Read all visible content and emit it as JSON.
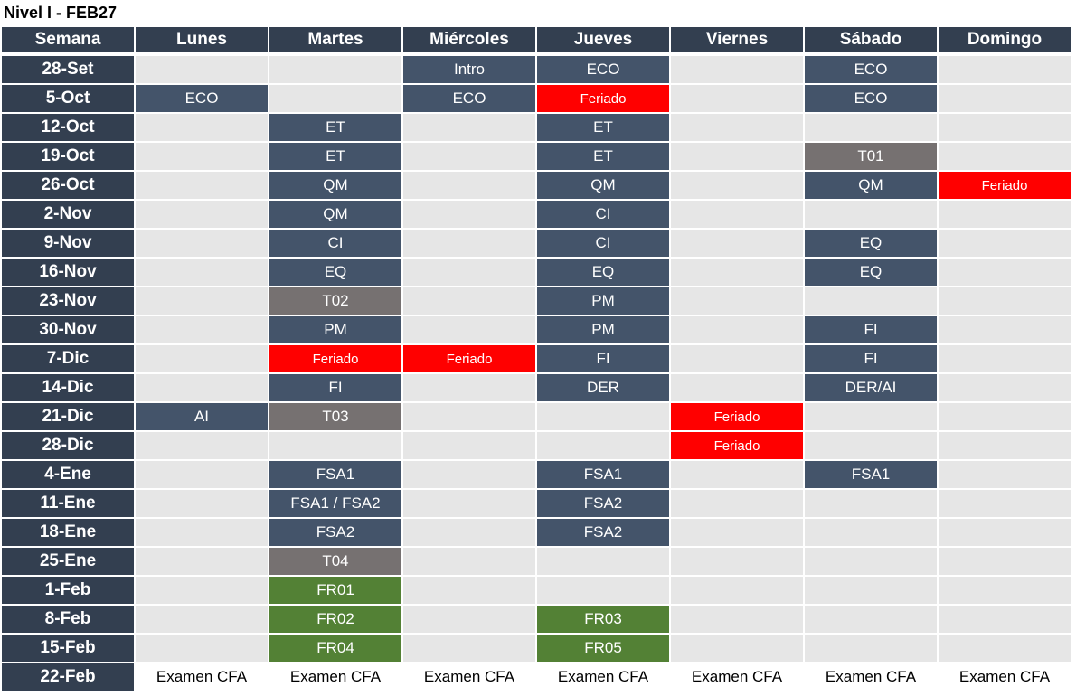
{
  "title": "Nivel I - FEB27",
  "table": {
    "header": [
      "Semana",
      "Lunes",
      "Martes",
      "Miércoles",
      "Jueves",
      "Viernes",
      "Sábado",
      "Domingo"
    ],
    "rows": [
      {
        "week": "28-Set",
        "cells": [
          null,
          null,
          {
            "text": "Intro",
            "color": "#44546a"
          },
          {
            "text": "ECO",
            "color": "#44546a"
          },
          null,
          {
            "text": "ECO",
            "color": "#44546a"
          },
          null
        ]
      },
      {
        "week": "5-Oct",
        "cells": [
          {
            "text": "ECO",
            "color": "#44546a"
          },
          null,
          {
            "text": "ECO",
            "color": "#44546a"
          },
          {
            "text": "Feriado",
            "color": "#ff0000"
          },
          null,
          {
            "text": "ECO",
            "color": "#44546a"
          },
          null
        ]
      },
      {
        "week": "12-Oct",
        "cells": [
          null,
          {
            "text": "ET",
            "color": "#44546a"
          },
          null,
          {
            "text": "ET",
            "color": "#44546a"
          },
          null,
          null,
          null
        ]
      },
      {
        "week": "19-Oct",
        "cells": [
          null,
          {
            "text": "ET",
            "color": "#44546a"
          },
          null,
          {
            "text": "ET",
            "color": "#44546a"
          },
          null,
          {
            "text": "T01",
            "color": "#767171"
          },
          null
        ]
      },
      {
        "week": "26-Oct",
        "cells": [
          null,
          {
            "text": "QM",
            "color": "#44546a"
          },
          null,
          {
            "text": "QM",
            "color": "#44546a"
          },
          null,
          {
            "text": "QM",
            "color": "#44546a"
          },
          {
            "text": "Feriado",
            "color": "#ff0000"
          }
        ]
      },
      {
        "week": "2-Nov",
        "cells": [
          null,
          {
            "text": "QM",
            "color": "#44546a"
          },
          null,
          {
            "text": "CI",
            "color": "#44546a"
          },
          null,
          null,
          null
        ]
      },
      {
        "week": "9-Nov",
        "cells": [
          null,
          {
            "text": "CI",
            "color": "#44546a"
          },
          null,
          {
            "text": "CI",
            "color": "#44546a"
          },
          null,
          {
            "text": "EQ",
            "color": "#44546a"
          },
          null
        ]
      },
      {
        "week": "16-Nov",
        "cells": [
          null,
          {
            "text": "EQ",
            "color": "#44546a"
          },
          null,
          {
            "text": "EQ",
            "color": "#44546a"
          },
          null,
          {
            "text": "EQ",
            "color": "#44546a"
          },
          null
        ]
      },
      {
        "week": "23-Nov",
        "cells": [
          null,
          {
            "text": "T02",
            "color": "#767171"
          },
          null,
          {
            "text": "PM",
            "color": "#44546a"
          },
          null,
          null,
          null
        ]
      },
      {
        "week": "30-Nov",
        "cells": [
          null,
          {
            "text": "PM",
            "color": "#44546a"
          },
          null,
          {
            "text": "PM",
            "color": "#44546a"
          },
          null,
          {
            "text": "FI",
            "color": "#44546a"
          },
          null
        ]
      },
      {
        "week": "7-Dic",
        "cells": [
          null,
          {
            "text": "Feriado",
            "color": "#ff0000"
          },
          {
            "text": "Feriado",
            "color": "#ff0000"
          },
          {
            "text": "FI",
            "color": "#44546a"
          },
          null,
          {
            "text": "FI",
            "color": "#44546a"
          },
          null
        ]
      },
      {
        "week": "14-Dic",
        "cells": [
          null,
          {
            "text": "FI",
            "color": "#44546a"
          },
          null,
          {
            "text": "DER",
            "color": "#44546a"
          },
          null,
          {
            "text": "DER/AI",
            "color": "#44546a"
          },
          null
        ]
      },
      {
        "week": "21-Dic",
        "cells": [
          {
            "text": "AI",
            "color": "#44546a"
          },
          {
            "text": "T03",
            "color": "#767171"
          },
          null,
          null,
          {
            "text": "Feriado",
            "color": "#ff0000"
          },
          null,
          null
        ]
      },
      {
        "week": "28-Dic",
        "cells": [
          null,
          null,
          null,
          null,
          {
            "text": "Feriado",
            "color": "#ff0000"
          },
          null,
          null
        ]
      },
      {
        "week": "4-Ene",
        "cells": [
          null,
          {
            "text": "FSA1",
            "color": "#44546a"
          },
          null,
          {
            "text": "FSA1",
            "color": "#44546a"
          },
          null,
          {
            "text": "FSA1",
            "color": "#44546a"
          },
          null
        ]
      },
      {
        "week": "11-Ene",
        "cells": [
          null,
          {
            "text": "FSA1 / FSA2",
            "color": "#44546a"
          },
          null,
          {
            "text": "FSA2",
            "color": "#44546a"
          },
          null,
          null,
          null
        ]
      },
      {
        "week": "18-Ene",
        "cells": [
          null,
          {
            "text": "FSA2",
            "color": "#44546a"
          },
          null,
          {
            "text": "FSA2",
            "color": "#44546a"
          },
          null,
          null,
          null
        ]
      },
      {
        "week": "25-Ene",
        "cells": [
          null,
          {
            "text": "T04",
            "color": "#767171"
          },
          null,
          null,
          null,
          null,
          null
        ]
      },
      {
        "week": "1-Feb",
        "cells": [
          null,
          {
            "text": "FR01",
            "color": "#538135"
          },
          null,
          null,
          null,
          null,
          null
        ]
      },
      {
        "week": "8-Feb",
        "cells": [
          null,
          {
            "text": "FR02",
            "color": "#538135"
          },
          null,
          {
            "text": "FR03",
            "color": "#538135"
          },
          null,
          null,
          null
        ]
      },
      {
        "week": "15-Feb",
        "cells": [
          null,
          {
            "text": "FR04",
            "color": "#538135"
          },
          null,
          {
            "text": "FR05",
            "color": "#538135"
          },
          null,
          null,
          null
        ]
      },
      {
        "week": "22-Feb",
        "cells": [
          {
            "text": "Examen CFA",
            "color": "#ffffff"
          },
          {
            "text": "Examen CFA",
            "color": "#ffffff"
          },
          {
            "text": "Examen CFA",
            "color": "#ffffff"
          },
          {
            "text": "Examen CFA",
            "color": "#ffffff"
          },
          {
            "text": "Examen CFA",
            "color": "#ffffff"
          },
          {
            "text": "Examen CFA",
            "color": "#ffffff"
          },
          {
            "text": "Examen CFA",
            "color": "#ffffff"
          }
        ]
      }
    ]
  }
}
